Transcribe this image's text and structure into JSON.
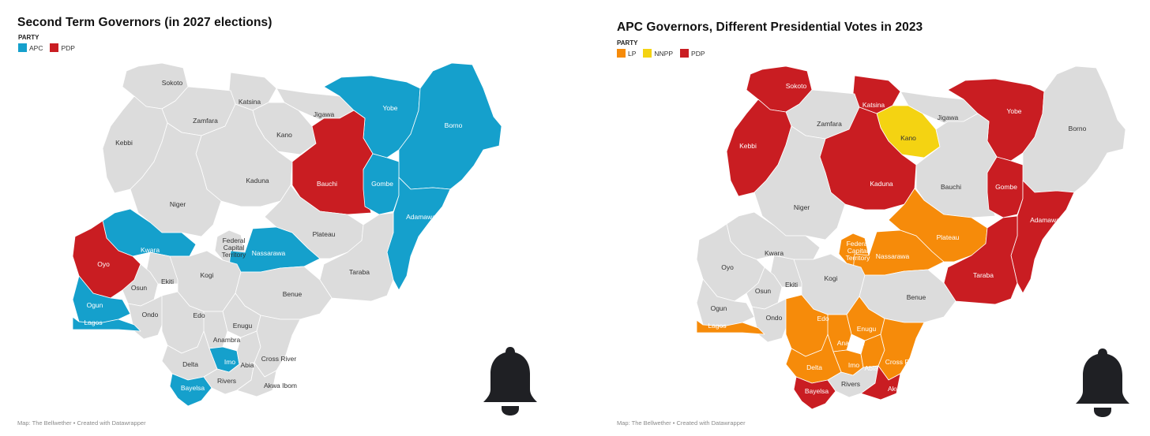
{
  "colors": {
    "APC": "#15a0cc",
    "PDP": "#c91d22",
    "LP": "#f68b0a",
    "NNPP": "#f4d312",
    "neutral": "#dcdcdc",
    "border": "#ffffff"
  },
  "left_map": {
    "title": "Second Term Governors (in 2027 elections)",
    "legend_title": "PARTY",
    "legend": [
      {
        "label": "APC",
        "color_key": "APC"
      },
      {
        "label": "PDP",
        "color_key": "PDP"
      }
    ],
    "footer": "Map: The Bellwether • Created with Datawrapper",
    "states": [
      {
        "name": "Sokoto",
        "party": null
      },
      {
        "name": "Katsina",
        "party": null
      },
      {
        "name": "Zamfara",
        "party": null
      },
      {
        "name": "Jigawa",
        "party": null
      },
      {
        "name": "Kano",
        "party": null
      },
      {
        "name": "Yobe",
        "party": "APC"
      },
      {
        "name": "Borno",
        "party": "APC"
      },
      {
        "name": "Kebbi",
        "party": null
      },
      {
        "name": "Kaduna",
        "party": null
      },
      {
        "name": "Bauchi",
        "party": "PDP"
      },
      {
        "name": "Gombe",
        "party": "APC"
      },
      {
        "name": "Niger",
        "party": null
      },
      {
        "name": "Adamawa",
        "party": "APC"
      },
      {
        "name": "Kwara",
        "party": "APC"
      },
      {
        "name": "Federal Capital Territory",
        "party": null
      },
      {
        "name": "Nassarawa",
        "party": "APC"
      },
      {
        "name": "Plateau",
        "party": null
      },
      {
        "name": "Oyo",
        "party": "PDP"
      },
      {
        "name": "Ekiti",
        "party": null
      },
      {
        "name": "Kogi",
        "party": null
      },
      {
        "name": "Taraba",
        "party": null
      },
      {
        "name": "Osun",
        "party": null
      },
      {
        "name": "Benue",
        "party": null
      },
      {
        "name": "Ogun",
        "party": "APC"
      },
      {
        "name": "Ondo",
        "party": null
      },
      {
        "name": "Edo",
        "party": null
      },
      {
        "name": "Lagos",
        "party": "APC"
      },
      {
        "name": "Enugu",
        "party": null
      },
      {
        "name": "Anambra",
        "party": null
      },
      {
        "name": "Imo",
        "party": "APC"
      },
      {
        "name": "Delta",
        "party": null
      },
      {
        "name": "Abia",
        "party": null
      },
      {
        "name": "Cross River",
        "party": null
      },
      {
        "name": "Bayelsa",
        "party": "APC"
      },
      {
        "name": "Rivers",
        "party": null
      },
      {
        "name": "Akwa Ibom",
        "party": null
      }
    ]
  },
  "right_map": {
    "title": "APC Governors, Different Presidential Votes in 2023",
    "legend_title": "PARTY",
    "legend": [
      {
        "label": "LP",
        "color_key": "LP"
      },
      {
        "label": "NNPP",
        "color_key": "NNPP"
      },
      {
        "label": "PDP",
        "color_key": "PDP"
      }
    ],
    "footer": "Map: The Bellwether • Created with Datawrapper",
    "states": [
      {
        "name": "Sokoto",
        "party": "PDP"
      },
      {
        "name": "Katsina",
        "party": "PDP"
      },
      {
        "name": "Zamfara",
        "party": null
      },
      {
        "name": "Jigawa",
        "party": null
      },
      {
        "name": "Kano",
        "party": "NNPP"
      },
      {
        "name": "Yobe",
        "party": "PDP"
      },
      {
        "name": "Borno",
        "party": null
      },
      {
        "name": "Kebbi",
        "party": "PDP"
      },
      {
        "name": "Kaduna",
        "party": "PDP"
      },
      {
        "name": "Bauchi",
        "party": null
      },
      {
        "name": "Gombe",
        "party": "PDP"
      },
      {
        "name": "Niger",
        "party": null
      },
      {
        "name": "Adamawa",
        "party": "PDP"
      },
      {
        "name": "Kwara",
        "party": null
      },
      {
        "name": "Federal Capital Territory",
        "party": "LP"
      },
      {
        "name": "Nassarawa",
        "party": "LP"
      },
      {
        "name": "Plateau",
        "party": "LP"
      },
      {
        "name": "Oyo",
        "party": null
      },
      {
        "name": "Ekiti",
        "party": null
      },
      {
        "name": "Kogi",
        "party": null
      },
      {
        "name": "Taraba",
        "party": "PDP"
      },
      {
        "name": "Osun",
        "party": null
      },
      {
        "name": "Benue",
        "party": null
      },
      {
        "name": "Ogun",
        "party": null
      },
      {
        "name": "Ondo",
        "party": null
      },
      {
        "name": "Edo",
        "party": "LP"
      },
      {
        "name": "Lagos",
        "party": "LP"
      },
      {
        "name": "Enugu",
        "party": "LP"
      },
      {
        "name": "Anambra",
        "party": "LP"
      },
      {
        "name": "Imo",
        "party": "LP"
      },
      {
        "name": "Delta",
        "party": "LP"
      },
      {
        "name": "Abia",
        "party": "LP"
      },
      {
        "name": "Cross River",
        "party": "LP"
      },
      {
        "name": "Bayelsa",
        "party": "PDP"
      },
      {
        "name": "Rivers",
        "party": null
      },
      {
        "name": "Akwa Ibom",
        "party": "PDP"
      }
    ]
  },
  "icons": {
    "notification": "bell-icon"
  }
}
